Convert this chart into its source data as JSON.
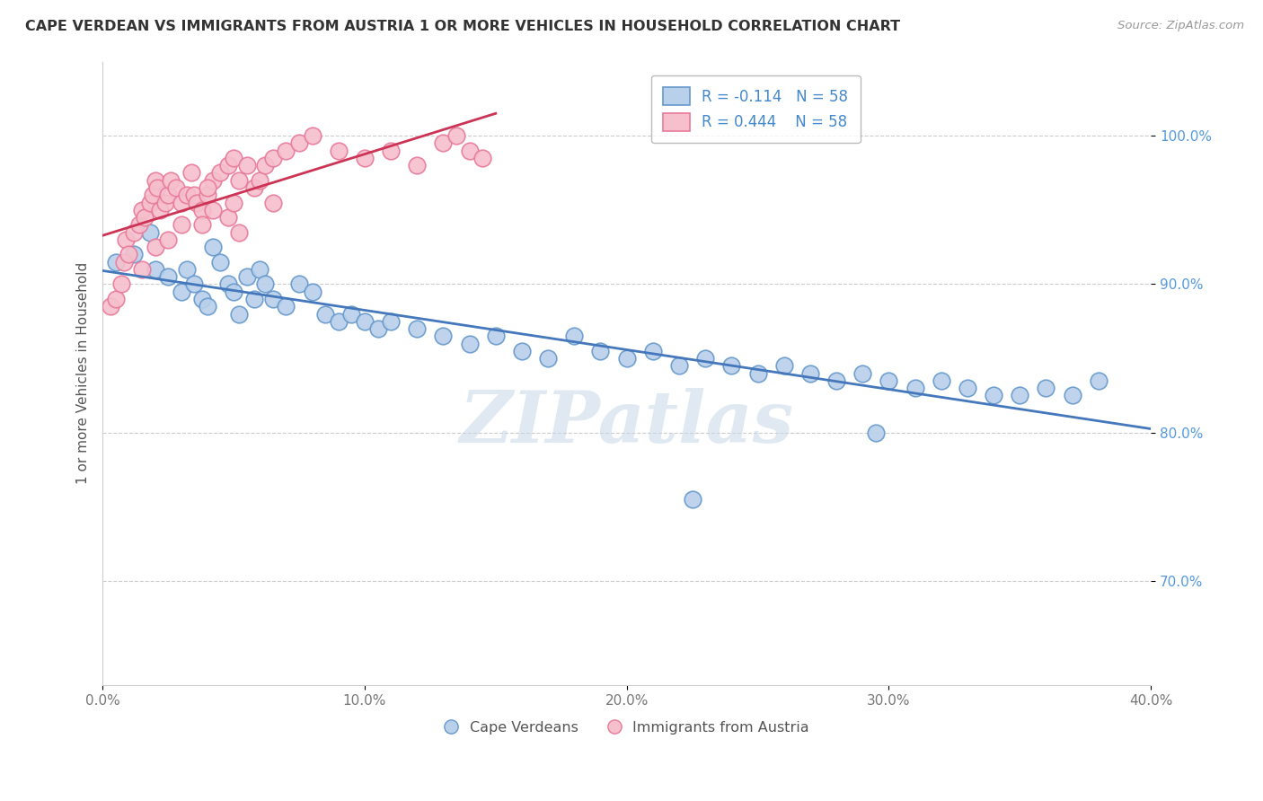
{
  "title": "CAPE VERDEAN VS IMMIGRANTS FROM AUSTRIA 1 OR MORE VEHICLES IN HOUSEHOLD CORRELATION CHART",
  "source": "Source: ZipAtlas.com",
  "xlabel_ticks": [
    "0.0%",
    "10.0%",
    "20.0%",
    "30.0%",
    "40.0%"
  ],
  "xlabel_vals": [
    0.0,
    10.0,
    20.0,
    30.0,
    40.0
  ],
  "ylabel_ticks": [
    "70.0%",
    "80.0%",
    "90.0%",
    "100.0%"
  ],
  "ylabel_vals": [
    70.0,
    80.0,
    90.0,
    100.0
  ],
  "xlim": [
    0.0,
    40.0
  ],
  "ylim": [
    63.0,
    105.0
  ],
  "blue_color": "#b8d0ea",
  "blue_edge": "#6699cc",
  "pink_color": "#f5bfcc",
  "pink_edge": "#e87a9a",
  "trend_blue": "#4477bb",
  "trend_pink": "#cc3355",
  "legend_blue_label": "R = -0.114   N = 58",
  "legend_pink_label": "R = 0.444    N = 58",
  "ylabel_label": "1 or more Vehicles in Household",
  "legend_cape": "Cape Verdeans",
  "legend_austria": "Immigrants from Austria",
  "watermark": "ZIPatlas",
  "blue_x": [
    0.5,
    1.2,
    1.8,
    2.0,
    2.5,
    3.0,
    3.2,
    3.5,
    3.8,
    4.0,
    4.2,
    4.5,
    4.8,
    5.0,
    5.2,
    5.5,
    5.8,
    6.0,
    6.2,
    6.5,
    7.0,
    7.5,
    8.0,
    8.5,
    9.0,
    9.5,
    10.0,
    10.5,
    11.0,
    12.0,
    13.0,
    14.0,
    15.0,
    16.0,
    17.0,
    18.0,
    19.0,
    20.0,
    21.0,
    22.0,
    23.0,
    24.0,
    25.0,
    26.0,
    27.0,
    28.0,
    29.0,
    30.0,
    31.0,
    32.0,
    33.0,
    34.0,
    35.0,
    36.0,
    37.0,
    38.0,
    29.5,
    22.5
  ],
  "blue_y": [
    91.5,
    92.0,
    93.5,
    91.0,
    90.5,
    89.5,
    91.0,
    90.0,
    89.0,
    88.5,
    92.5,
    91.5,
    90.0,
    89.5,
    88.0,
    90.5,
    89.0,
    91.0,
    90.0,
    89.0,
    88.5,
    90.0,
    89.5,
    88.0,
    87.5,
    88.0,
    87.5,
    87.0,
    87.5,
    87.0,
    86.5,
    86.0,
    86.5,
    85.5,
    85.0,
    86.5,
    85.5,
    85.0,
    85.5,
    84.5,
    85.0,
    84.5,
    84.0,
    84.5,
    84.0,
    83.5,
    84.0,
    83.5,
    83.0,
    83.5,
    83.0,
    82.5,
    82.5,
    83.0,
    82.5,
    83.5,
    80.0,
    75.5
  ],
  "pink_x": [
    0.3,
    0.5,
    0.7,
    0.8,
    0.9,
    1.0,
    1.2,
    1.4,
    1.5,
    1.6,
    1.8,
    1.9,
    2.0,
    2.1,
    2.2,
    2.4,
    2.5,
    2.6,
    2.8,
    3.0,
    3.2,
    3.4,
    3.5,
    3.6,
    3.8,
    4.0,
    4.2,
    4.5,
    4.8,
    5.0,
    5.2,
    5.5,
    5.8,
    6.0,
    6.2,
    6.5,
    7.0,
    7.5,
    8.0,
    9.0,
    10.0,
    11.0,
    12.0,
    13.0,
    13.5,
    14.0,
    14.5,
    4.2,
    4.8,
    5.2,
    2.0,
    1.5,
    3.0,
    5.0,
    3.8,
    2.5,
    6.5,
    4.0
  ],
  "pink_y": [
    88.5,
    89.0,
    90.0,
    91.5,
    93.0,
    92.0,
    93.5,
    94.0,
    95.0,
    94.5,
    95.5,
    96.0,
    97.0,
    96.5,
    95.0,
    95.5,
    96.0,
    97.0,
    96.5,
    95.5,
    96.0,
    97.5,
    96.0,
    95.5,
    95.0,
    96.0,
    97.0,
    97.5,
    98.0,
    98.5,
    97.0,
    98.0,
    96.5,
    97.0,
    98.0,
    98.5,
    99.0,
    99.5,
    100.0,
    99.0,
    98.5,
    99.0,
    98.0,
    99.5,
    100.0,
    99.0,
    98.5,
    95.0,
    94.5,
    93.5,
    92.5,
    91.0,
    94.0,
    95.5,
    94.0,
    93.0,
    95.5,
    96.5
  ]
}
